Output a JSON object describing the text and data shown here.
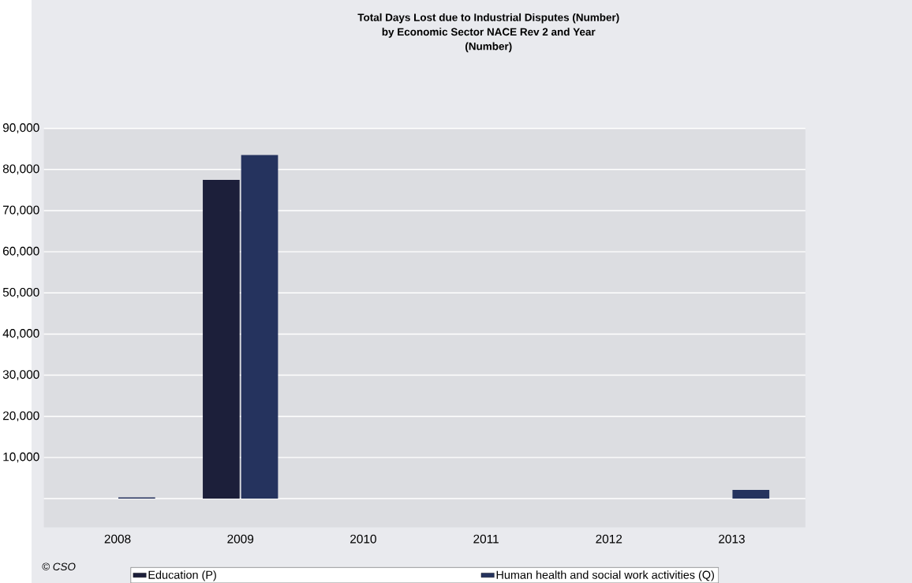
{
  "chart_data": {
    "type": "bar",
    "title": "Total Days Lost due to Industrial Disputes (Number)",
    "subtitle": "by Economic Sector NACE Rev 2 and Year",
    "annotations": [
      "(Number)",
      "© CSO"
    ],
    "categories": [
      "2008",
      "2009",
      "2010",
      "2011",
      "2012",
      "2013"
    ],
    "series": [
      {
        "name": "Education (P)",
        "color": "#1c1f3a",
        "values": [
          null,
          77500,
          null,
          null,
          null,
          null
        ]
      },
      {
        "name": "Human health and social work activities (Q)",
        "color": "#25335e",
        "values": [
          300,
          83500,
          null,
          null,
          null,
          2100
        ]
      }
    ],
    "ylim": [
      -7000,
      90000
    ],
    "yticks": [
      {
        "value": 0,
        "label": null
      },
      {
        "value": 10000,
        "label": "10,000"
      },
      {
        "value": 20000,
        "label": "20,000"
      },
      {
        "value": 30000,
        "label": "30,000"
      },
      {
        "value": 40000,
        "label": "40,000"
      },
      {
        "value": 50000,
        "label": "50,000"
      },
      {
        "value": 60000,
        "label": "60,000"
      },
      {
        "value": 70000,
        "label": "70,000"
      },
      {
        "value": 80000,
        "label": "80,000"
      },
      {
        "value": 90000,
        "label": "90,000"
      }
    ],
    "grid": "y",
    "legend": "bottom"
  }
}
